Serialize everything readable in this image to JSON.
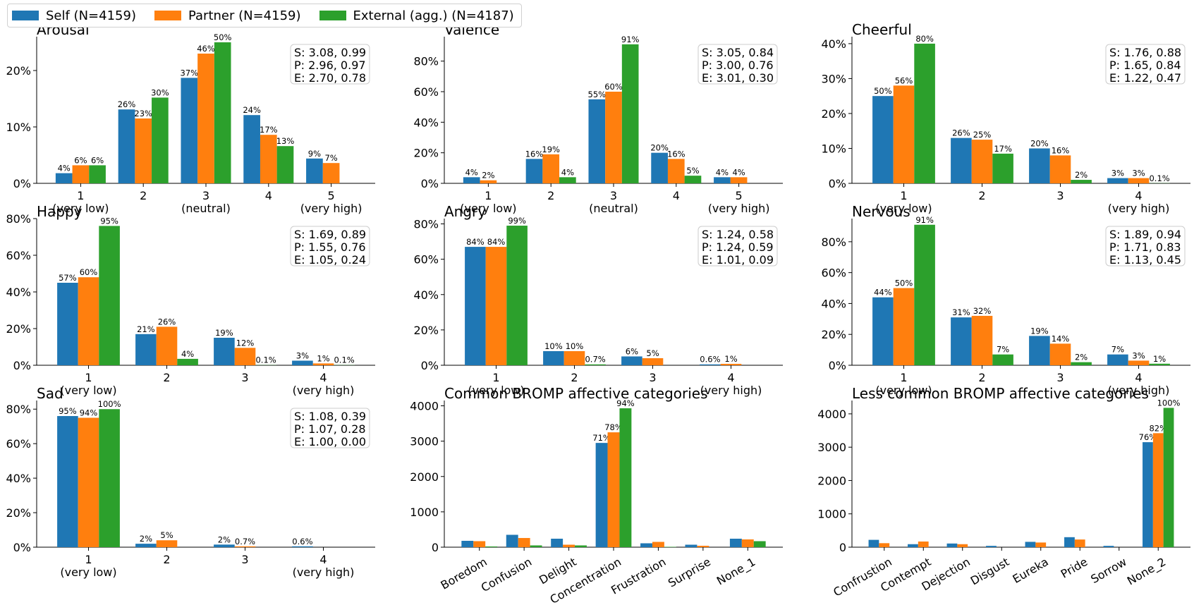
{
  "colors": {
    "self": "#1f77b4",
    "partner": "#ff7f0e",
    "external": "#2ca02c"
  },
  "legend": [
    {
      "label": "Self (N=4159)",
      "color": "#1f77b4"
    },
    {
      "label": "Partner (N=4159)",
      "color": "#ff7f0e"
    },
    {
      "label": "External (agg.) (N=4187)",
      "color": "#2ca02c"
    }
  ],
  "chart_data": [
    {
      "type": "bar",
      "title": "Arousal",
      "categories": [
        "1\n(very low)",
        "2",
        "3\n(neutral)",
        "4",
        "5\n(very high)"
      ],
      "series": [
        {
          "name": "Self (N=4159)",
          "values": [
            1.8,
            13.1,
            18.7,
            12.1,
            4.4
          ],
          "labels": [
            "4%",
            "26%",
            "37%",
            "24%",
            "9%"
          ]
        },
        {
          "name": "Partner (N=4159)",
          "values": [
            3.2,
            11.5,
            23.0,
            8.6,
            3.6
          ],
          "labels": [
            "6%",
            "23%",
            "46%",
            "17%",
            "7%"
          ]
        },
        {
          "name": "External (agg.) (N=4187)",
          "values": [
            3.2,
            15.2,
            25.0,
            6.6,
            0
          ],
          "labels": [
            "6%",
            "30%",
            "50%",
            "13%",
            ""
          ]
        }
      ],
      "ylim": [
        0,
        26
      ],
      "yticks": [
        0,
        10,
        20
      ],
      "ytick_labels": [
        "0%",
        "10%",
        "20%"
      ],
      "stats": [
        "S: 3.08, 0.99",
        "P: 2.96, 0.97",
        "E: 2.70, 0.78"
      ]
    },
    {
      "type": "bar",
      "title": "Valence",
      "categories": [
        "1\n(very low)",
        "2",
        "3\n(neutral)",
        "4",
        "5\n(very high)"
      ],
      "series": [
        {
          "name": "Self (N=4159)",
          "values": [
            4,
            16,
            55,
            20,
            4
          ],
          "labels": [
            "4%",
            "16%",
            "55%",
            "20%",
            "4%"
          ]
        },
        {
          "name": "Partner (N=4159)",
          "values": [
            2,
            19,
            60,
            16,
            4
          ],
          "labels": [
            "2%",
            "19%",
            "60%",
            "16%",
            "4%"
          ]
        },
        {
          "name": "External (agg.) (N=4187)",
          "values": [
            0,
            4,
            91,
            5,
            0
          ],
          "labels": [
            "",
            "4%",
            "91%",
            "5%",
            ""
          ]
        }
      ],
      "ylim": [
        0,
        96
      ],
      "yticks": [
        0,
        20,
        40,
        60,
        80
      ],
      "ytick_labels": [
        "0%",
        "20%",
        "40%",
        "60%",
        "80%"
      ],
      "stats": [
        "S: 3.05, 0.84",
        "P: 3.00, 0.76",
        "E: 3.01, 0.30"
      ]
    },
    {
      "type": "bar",
      "title": "Cheerful",
      "categories": [
        "1\n(very low)",
        "2",
        "3",
        "4\n(very high)"
      ],
      "series": [
        {
          "name": "Self (N=4159)",
          "values": [
            25,
            13,
            10,
            1.5
          ],
          "labels": [
            "50%",
            "26%",
            "20%",
            "3%"
          ]
        },
        {
          "name": "Partner (N=4159)",
          "values": [
            28,
            12.5,
            8,
            1.5
          ],
          "labels": [
            "56%",
            "25%",
            "16%",
            "3%"
          ]
        },
        {
          "name": "External (agg.) (N=4187)",
          "values": [
            40,
            8.5,
            1,
            0.05
          ],
          "labels": [
            "80%",
            "17%",
            "2%",
            "0.1%"
          ]
        }
      ],
      "ylim": [
        0,
        42
      ],
      "yticks": [
        0,
        10,
        20,
        30,
        40
      ],
      "ytick_labels": [
        "0%",
        "10%",
        "20%",
        "30%",
        "40%"
      ],
      "stats": [
        "S: 1.76, 0.88",
        "P: 1.65, 0.84",
        "E: 1.22, 0.47"
      ]
    },
    {
      "type": "bar",
      "title": "Happy",
      "categories": [
        "1\n(very low)",
        "2",
        "3",
        "4\n(very high)"
      ],
      "series": [
        {
          "name": "Self (N=4159)",
          "values": [
            45,
            17,
            15,
            2.5
          ],
          "labels": [
            "57%",
            "21%",
            "19%",
            "3%"
          ]
        },
        {
          "name": "Partner (N=4159)",
          "values": [
            48,
            21,
            9.5,
            1
          ],
          "labels": [
            "60%",
            "26%",
            "12%",
            "1%"
          ]
        },
        {
          "name": "External (agg.) (N=4187)",
          "values": [
            76,
            3.5,
            0.1,
            0.1
          ],
          "labels": [
            "95%",
            "4%",
            "0.1%",
            "0.1%"
          ]
        }
      ],
      "ylim": [
        0,
        80
      ],
      "yticks": [
        0,
        20,
        40,
        60,
        80
      ],
      "ytick_labels": [
        "0%",
        "20%",
        "40%",
        "60%",
        "80%"
      ],
      "stats": [
        "S: 1.69, 0.89",
        "P: 1.55, 0.76",
        "E: 1.05, 0.24"
      ]
    },
    {
      "type": "bar",
      "title": "Angry",
      "categories": [
        "1\n(very low)",
        "2",
        "3",
        "4\n(very high)"
      ],
      "series": [
        {
          "name": "Self (N=4159)",
          "values": [
            67,
            8,
            5,
            0.5
          ],
          "labels": [
            "84%",
            "10%",
            "6%",
            "0.6%"
          ]
        },
        {
          "name": "Partner (N=4159)",
          "values": [
            67,
            8,
            4,
            0.8
          ],
          "labels": [
            "84%",
            "10%",
            "5%",
            "1%"
          ]
        },
        {
          "name": "External (agg.) (N=4187)",
          "values": [
            79,
            0.5,
            0,
            0
          ],
          "labels": [
            "99%",
            "0.7%",
            "",
            ""
          ]
        }
      ],
      "ylim": [
        0,
        83
      ],
      "yticks": [
        0,
        20,
        40,
        60,
        80
      ],
      "ytick_labels": [
        "0%",
        "20%",
        "40%",
        "60%",
        "80%"
      ],
      "stats": [
        "S: 1.24, 0.58",
        "P: 1.24, 0.59",
        "E: 1.01, 0.09"
      ]
    },
    {
      "type": "bar",
      "title": "Nervous",
      "categories": [
        "1\n(very low)",
        "2",
        "3",
        "4\n(very high)"
      ],
      "series": [
        {
          "name": "Self (N=4159)",
          "values": [
            44,
            31,
            19,
            7
          ],
          "labels": [
            "44%",
            "31%",
            "19%",
            "7%"
          ]
        },
        {
          "name": "Partner (N=4159)",
          "values": [
            50,
            32,
            14,
            3
          ],
          "labels": [
            "50%",
            "32%",
            "14%",
            "3%"
          ]
        },
        {
          "name": "External (agg.) (N=4187)",
          "values": [
            91,
            7,
            2,
            1
          ],
          "labels": [
            "91%",
            "7%",
            "2%",
            "1%"
          ]
        }
      ],
      "ylim": [
        0,
        95
      ],
      "yticks": [
        0,
        20,
        40,
        60,
        80
      ],
      "ytick_labels": [
        "0%",
        "20%",
        "40%",
        "60%",
        "80%"
      ],
      "stats": [
        "S: 1.89, 0.94",
        "P: 1.71, 0.83",
        "E: 1.13, 0.45"
      ]
    },
    {
      "type": "bar",
      "title": "Sad",
      "categories": [
        "1\n(very low)",
        "2",
        "3",
        "4\n(very high)"
      ],
      "series": [
        {
          "name": "Self (N=4159)",
          "values": [
            76,
            2,
            1.5,
            0.5
          ],
          "labels": [
            "95%",
            "2%",
            "2%",
            "0.6%"
          ]
        },
        {
          "name": "Partner (N=4159)",
          "values": [
            75,
            4,
            0.5,
            0
          ],
          "labels": [
            "94%",
            "5%",
            "0.7%",
            ""
          ]
        },
        {
          "name": "External (agg.) (N=4187)",
          "values": [
            80,
            0,
            0,
            0
          ],
          "labels": [
            "100%",
            "",
            "",
            ""
          ]
        }
      ],
      "ylim": [
        0,
        85
      ],
      "yticks": [
        0,
        20,
        40,
        60,
        80
      ],
      "ytick_labels": [
        "0%",
        "20%",
        "40%",
        "60%",
        "80%"
      ],
      "stats": [
        "S: 1.08, 0.39",
        "P: 1.07, 0.28",
        "E: 1.00, 0.00"
      ]
    },
    {
      "type": "bar",
      "title": "Common BROMP affective categories",
      "categories": [
        "Boredom",
        "Confusion",
        "Delight",
        "Concentration",
        "Frustration",
        "Surprise",
        "None_1"
      ],
      "series": [
        {
          "name": "Self (N=4159)",
          "values": [
            180,
            350,
            240,
            2950,
            110,
            70,
            240
          ],
          "labels": [
            "",
            "",
            "",
            "71%",
            "",
            "",
            ""
          ]
        },
        {
          "name": "Partner (N=4159)",
          "values": [
            170,
            260,
            70,
            3250,
            150,
            40,
            220
          ],
          "labels": [
            "",
            "",
            "",
            "78%",
            "",
            "",
            ""
          ]
        },
        {
          "name": "External (agg.) (N=4187)",
          "values": [
            20,
            50,
            50,
            3930,
            10,
            0,
            170
          ],
          "labels": [
            "",
            "",
            "",
            "94%",
            "",
            "",
            ""
          ]
        }
      ],
      "ylim": [
        0,
        4150
      ],
      "yticks": [
        0,
        1000,
        2000,
        3000,
        4000
      ],
      "ytick_labels": [
        "0",
        "1000",
        "2000",
        "3000",
        "4000"
      ],
      "rotate_x": true
    },
    {
      "type": "bar",
      "title": "Less common BROMP affective categories",
      "categories": [
        "Confrustion",
        "Contempt",
        "Dejection",
        "Disgust",
        "Eureka",
        "Pride",
        "Sorrow",
        "None_2"
      ],
      "series": [
        {
          "name": "Self (N=4159)",
          "values": [
            220,
            90,
            110,
            40,
            160,
            300,
            40,
            3150
          ],
          "labels": [
            "",
            "",
            "",
            "",
            "",
            "",
            "",
            "76%"
          ]
        },
        {
          "name": "Partner (N=4159)",
          "values": [
            120,
            170,
            90,
            0,
            140,
            230,
            0,
            3420
          ],
          "labels": [
            "",
            "",
            "",
            "",
            "",
            "",
            "",
            "82%"
          ]
        },
        {
          "name": "External (agg.) (N=4187)",
          "values": [
            0,
            0,
            0,
            0,
            0,
            0,
            0,
            4180
          ],
          "labels": [
            "",
            "",
            "",
            "",
            "",
            "",
            "",
            "100%"
          ]
        }
      ],
      "ylim": [
        0,
        4400
      ],
      "yticks": [
        0,
        1000,
        2000,
        3000,
        4000
      ],
      "ytick_labels": [
        "0",
        "1000",
        "2000",
        "3000",
        "4000"
      ],
      "rotate_x": true
    }
  ]
}
